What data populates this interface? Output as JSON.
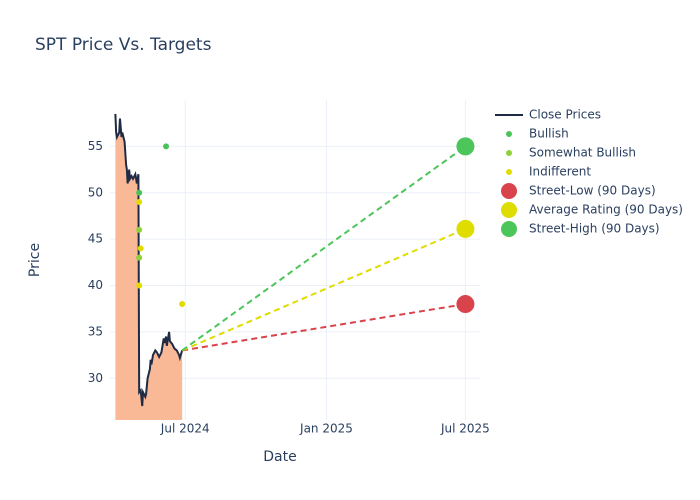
{
  "chart_data": {
    "type": "line",
    "title": "SPT Price Vs. Targets",
    "x_label": "Date",
    "y_label": "Price",
    "xlim": [
      "2024-03-25",
      "2025-07-20"
    ],
    "ylim": [
      25.5,
      60
    ],
    "xticks": [
      {
        "value": "2024-07-01",
        "label": "Jul 2024"
      },
      {
        "value": "2025-01-01",
        "label": "Jan 2025"
      },
      {
        "value": "2025-07-01",
        "label": "Jul 2025"
      }
    ],
    "yticks": [
      30,
      35,
      40,
      45,
      50,
      55
    ],
    "grid": true,
    "legend": "right",
    "series": [
      {
        "name": "Close Prices",
        "type": "area",
        "color": "#1f2a44",
        "fill_color": "#f9b896",
        "x": [
          "2024-04-01",
          "2024-04-02",
          "2024-04-03",
          "2024-04-06",
          "2024-04-07",
          "2024-04-09",
          "2024-04-10",
          "2024-04-13",
          "2024-04-15",
          "2024-04-16",
          "2024-04-17",
          "2024-04-19",
          "2024-04-20",
          "2024-04-22",
          "2024-04-24",
          "2024-04-27",
          "2024-04-29",
          "2024-05-01",
          "2024-05-02",
          "2024-05-04",
          "2024-05-06",
          "2024-05-07",
          "2024-05-10",
          "2024-05-11",
          "2024-05-13",
          "2024-05-16",
          "2024-05-17",
          "2024-05-18",
          "2024-05-20",
          "2024-05-23",
          "2024-05-25",
          "2024-05-28",
          "2024-05-31",
          "2024-06-03",
          "2024-06-04",
          "2024-06-06",
          "2024-06-07",
          "2024-06-10",
          "2024-06-11",
          "2024-06-14",
          "2024-06-17",
          "2024-06-20",
          "2024-06-23",
          "2024-06-24",
          "2024-06-27"
        ],
        "values": [
          58.5,
          56.5,
          56,
          56.5,
          58,
          56,
          56.5,
          55.5,
          53,
          52.5,
          51,
          52.5,
          51.5,
          51.8,
          51.5,
          52,
          51,
          52,
          28.5,
          28.7,
          27,
          28.5,
          28,
          28.3,
          30,
          31,
          32,
          31.5,
          32.5,
          33,
          32.8,
          32.3,
          32.8,
          34.3,
          33.8,
          34.5,
          33.5,
          35,
          34,
          33.7,
          33.2,
          33,
          32.5,
          32.2,
          33
        ]
      },
      {
        "name": "Bullish",
        "type": "scatter",
        "color": "#4cc25a",
        "x": [
          "2024-06-06",
          "2024-05-02"
        ],
        "values": [
          55,
          50
        ]
      },
      {
        "name": "Somewhat Bullish",
        "type": "scatter",
        "color": "#8fd13a",
        "x": [
          "2024-05-02",
          "2024-05-02"
        ],
        "values": [
          46,
          43
        ]
      },
      {
        "name": "Indifferent",
        "type": "scatter",
        "color": "#e0dc00",
        "x": [
          "2024-05-02",
          "2024-05-04",
          "2024-05-02",
          "2024-06-27"
        ],
        "values": [
          49,
          44,
          40,
          38
        ]
      },
      {
        "name": "Street-Low (90 Days)",
        "type": "target",
        "color": "#d9434b",
        "x": [
          "2024-06-27",
          "2025-07-01"
        ],
        "values": [
          33,
          38
        ]
      },
      {
        "name": "Average Rating (90 Days)",
        "type": "target",
        "color": "#dfdc00",
        "x": [
          "2024-06-27",
          "2025-07-01"
        ],
        "values": [
          33,
          46.1
        ]
      },
      {
        "name": "Street-High (90 Days)",
        "type": "target",
        "color": "#4cc55a",
        "x": [
          "2024-06-27",
          "2025-07-01"
        ],
        "values": [
          33,
          55
        ]
      }
    ]
  }
}
